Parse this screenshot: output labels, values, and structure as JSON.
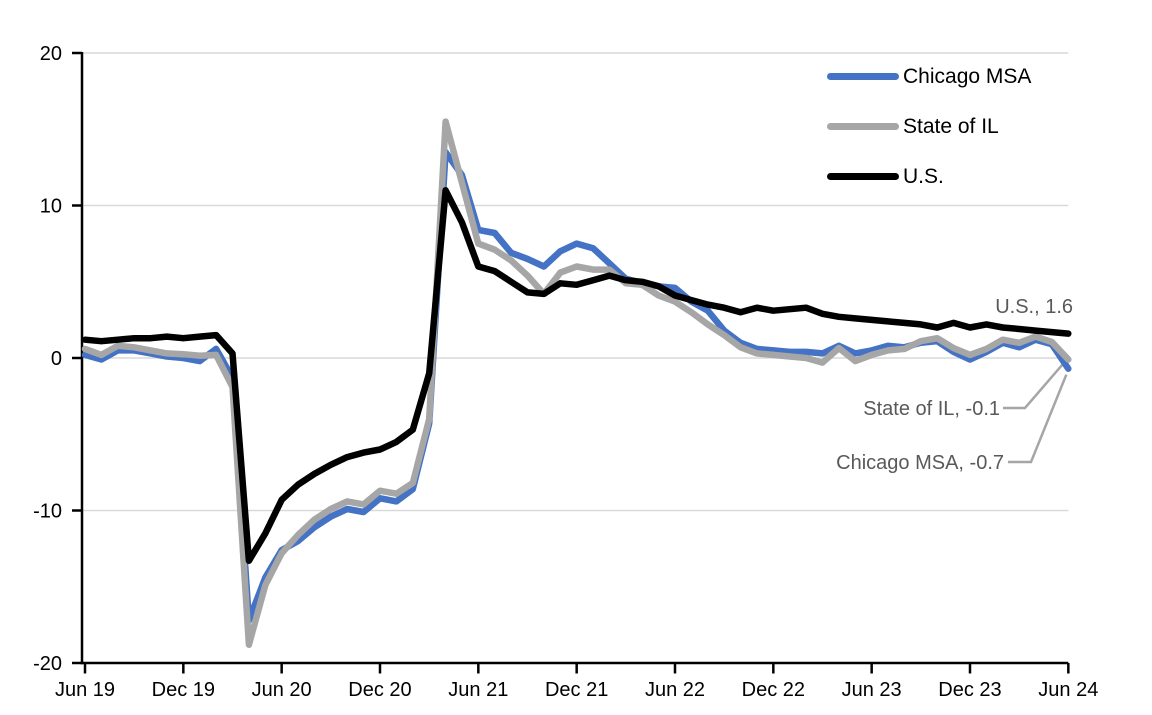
{
  "chart_data": {
    "type": "line",
    "title": "",
    "frequency": "monthly",
    "date_range": "Jun 2019 - Jun 2024",
    "n_points": 61,
    "x_axis": {
      "tick_labels": [
        "Jun 19",
        "Dec 19",
        "Jun 20",
        "Dec 20",
        "Jun 21",
        "Dec 21",
        "Jun 22",
        "Dec 22",
        "Jun 23",
        "Dec 23",
        "Jun 24"
      ],
      "tick_every_n_points": 6
    },
    "y_axis": {
      "tick_values": [
        20,
        10,
        0,
        -10,
        -20
      ],
      "ylim": [
        -20,
        20
      ]
    },
    "grid": {
      "horizontal": true,
      "vertical": false,
      "color": "#D9D9D9"
    },
    "legend": {
      "position": "top-right"
    },
    "series": [
      {
        "name": "Chicago MSA",
        "color": "#4472C4",
        "last_value": -0.7,
        "values": [
          0.2,
          -0.1,
          0.5,
          0.5,
          0.3,
          0.1,
          0.0,
          -0.2,
          0.6,
          -1.3,
          -17.2,
          -14.4,
          -12.6,
          -12.0,
          -11.1,
          -10.4,
          -9.9,
          -10.1,
          -9.2,
          -9.4,
          -8.6,
          -4.3,
          13.5,
          12.0,
          8.4,
          8.2,
          6.9,
          6.5,
          6.0,
          7.0,
          7.5,
          7.2,
          6.2,
          5.2,
          4.9,
          4.7,
          4.6,
          3.7,
          3.1,
          1.8,
          1.0,
          0.6,
          0.5,
          0.4,
          0.4,
          0.3,
          0.8,
          0.3,
          0.5,
          0.8,
          0.7,
          1.0,
          1.1,
          0.4,
          -0.1,
          0.4,
          1.0,
          0.7,
          1.2,
          0.9,
          -0.7
        ]
      },
      {
        "name": "State of IL",
        "color": "#A6A6A6",
        "last_value": -0.1,
        "values": [
          0.6,
          0.2,
          0.8,
          0.7,
          0.5,
          0.3,
          0.25,
          0.15,
          0.2,
          -1.9,
          -18.8,
          -14.9,
          -12.8,
          -11.6,
          -10.6,
          -9.9,
          -9.4,
          -9.6,
          -8.7,
          -8.9,
          -8.2,
          -4.0,
          15.5,
          11.5,
          7.5,
          7.1,
          6.4,
          5.4,
          4.2,
          5.6,
          6.0,
          5.8,
          5.8,
          4.9,
          4.8,
          4.1,
          3.7,
          3.0,
          2.2,
          1.5,
          0.7,
          0.3,
          0.2,
          0.1,
          0.0,
          -0.3,
          0.65,
          -0.2,
          0.2,
          0.5,
          0.6,
          1.1,
          1.3,
          0.65,
          0.2,
          0.6,
          1.2,
          1.0,
          1.4,
          1.05,
          -0.1
        ]
      },
      {
        "name": "U.S.",
        "color": "#000000",
        "last_value": 1.6,
        "values": [
          1.2,
          1.1,
          1.2,
          1.3,
          1.3,
          1.4,
          1.3,
          1.4,
          1.5,
          0.3,
          -13.3,
          -11.5,
          -9.3,
          -8.3,
          -7.6,
          -7.0,
          -6.5,
          -6.2,
          -6.0,
          -5.5,
          -4.7,
          -1.0,
          11.0,
          8.9,
          6.0,
          5.7,
          5.0,
          4.3,
          4.2,
          4.9,
          4.8,
          5.1,
          5.4,
          5.1,
          5.0,
          4.7,
          4.1,
          3.8,
          3.5,
          3.3,
          3.0,
          3.3,
          3.1,
          3.2,
          3.3,
          2.9,
          2.7,
          2.6,
          2.5,
          2.4,
          2.3,
          2.2,
          2.0,
          2.3,
          2.0,
          2.2,
          2.0,
          1.9,
          1.8,
          1.7,
          1.6
        ]
      }
    ],
    "annotations": [
      {
        "text": "U.S., 1.6",
        "series": "U.S.",
        "has_leader": false
      },
      {
        "text": "State of IL, -0.1",
        "series": "State of IL",
        "has_leader": true
      },
      {
        "text": "Chicago MSA, -0.7",
        "series": "Chicago MSA",
        "has_leader": true
      }
    ]
  },
  "colors": {
    "background": "#FFFFFF",
    "axis": "#000000",
    "gridline": "#D9D9D9",
    "tick_label": "#000000",
    "annotation_text": "#595959",
    "leader_line": "#A6A6A6"
  }
}
